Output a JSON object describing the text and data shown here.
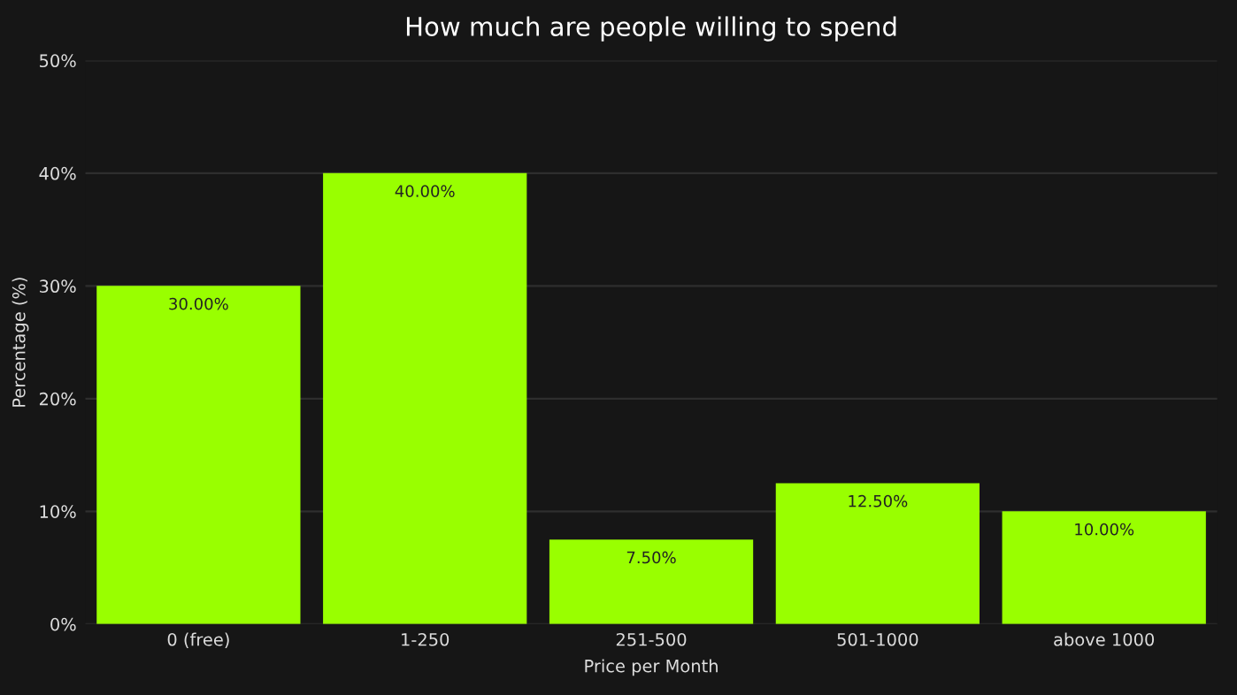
{
  "chart_data": {
    "type": "bar",
    "title": "How much are people willing to spend",
    "xlabel": "Price per Month",
    "ylabel": "Percentage (%)",
    "categories": [
      "0 (free)",
      "1-250",
      "251-500",
      "501-1000",
      "above 1000"
    ],
    "values": [
      30,
      40,
      7.5,
      12.5,
      10
    ],
    "color": "#99ff00",
    "value_labels": [
      "30.00%",
      "40.00%",
      "7.50%",
      "12.50%",
      "10.00%"
    ],
    "ylim": [
      0,
      50
    ],
    "yticks": [
      {
        "value": 0,
        "label": "0%"
      },
      {
        "value": 10,
        "label": "10%"
      },
      {
        "value": 20,
        "label": "20%"
      },
      {
        "value": 30,
        "label": "30%"
      },
      {
        "value": 40,
        "label": "40%"
      },
      {
        "value": 50,
        "label": "50%"
      }
    ],
    "grid": "y",
    "legend": false
  }
}
